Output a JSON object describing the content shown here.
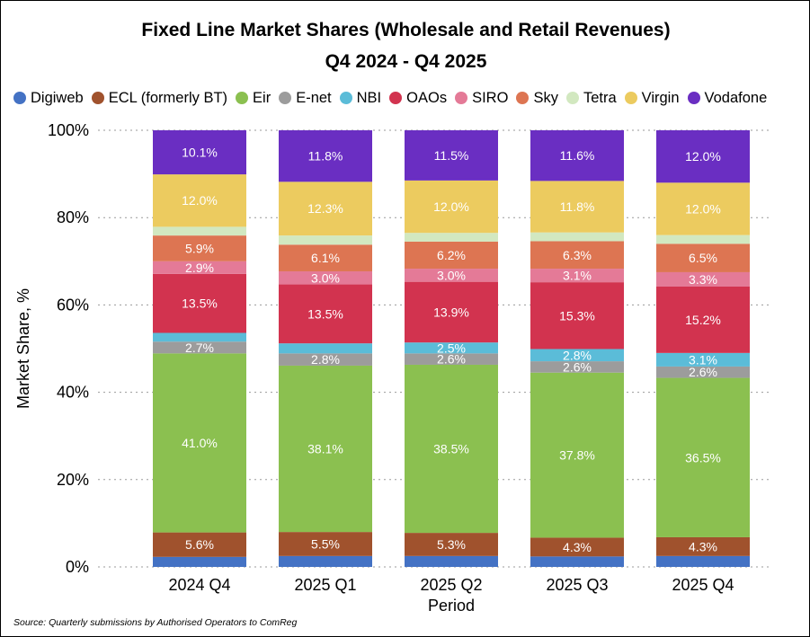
{
  "chart_data": {
    "type": "bar",
    "stacked": true,
    "title": "Fixed Line Market Shares (Wholesale and Retail Revenues)",
    "subtitle": "Q4 2024 - Q4 2025",
    "xlabel": "Period",
    "ylabel": "Market Share, %",
    "ylim": [
      0,
      100
    ],
    "yticks": [
      "0%",
      "20%",
      "40%",
      "60%",
      "80%",
      "100%"
    ],
    "grid": "horizontal dotted",
    "legend_position": "top",
    "categories": [
      "2024 Q4",
      "2025 Q1",
      "2025 Q2",
      "2025 Q3",
      "2025 Q4"
    ],
    "series": [
      {
        "name": "Digiweb",
        "color": "#4472C4",
        "values": [
          2.3,
          2.5,
          2.5,
          2.4,
          2.5
        ],
        "labels": [
          "",
          "",
          "",
          "",
          ""
        ]
      },
      {
        "name": "ECL (formerly BT)",
        "color": "#A0522D",
        "values": [
          5.6,
          5.5,
          5.3,
          4.3,
          4.3
        ],
        "labels": [
          "5.6%",
          "5.5%",
          "5.3%",
          "4.3%",
          "4.3%"
        ]
      },
      {
        "name": "Eir",
        "color": "#8BC050",
        "values": [
          41.0,
          38.1,
          38.5,
          37.8,
          36.5
        ],
        "labels": [
          "41.0%",
          "38.1%",
          "38.5%",
          "37.8%",
          "36.5%"
        ]
      },
      {
        "name": "E-net",
        "color": "#9C9C9C",
        "values": [
          2.7,
          2.8,
          2.6,
          2.6,
          2.6
        ],
        "labels": [
          "2.7%",
          "2.8%",
          "2.6%",
          "2.6%",
          "2.6%"
        ]
      },
      {
        "name": "NBI",
        "color": "#5BBCD8",
        "values": [
          2.0,
          2.3,
          2.5,
          2.8,
          3.1
        ],
        "labels": [
          "",
          "",
          "2.5%",
          "2.8%",
          "3.1%"
        ]
      },
      {
        "name": "OAOs",
        "color": "#D2334F",
        "values": [
          13.5,
          13.5,
          13.9,
          15.3,
          15.2
        ],
        "labels": [
          "13.5%",
          "13.5%",
          "13.9%",
          "15.3%",
          "15.2%"
        ]
      },
      {
        "name": "SIRO",
        "color": "#E47A97",
        "values": [
          2.9,
          3.0,
          3.0,
          3.1,
          3.3
        ],
        "labels": [
          "2.9%",
          "3.0%",
          "3.0%",
          "3.1%",
          "3.3%"
        ]
      },
      {
        "name": "Sky",
        "color": "#DD7552",
        "values": [
          5.9,
          6.1,
          6.2,
          6.3,
          6.5
        ],
        "labels": [
          "5.9%",
          "6.1%",
          "6.2%",
          "6.3%",
          "6.5%"
        ]
      },
      {
        "name": "Tetra",
        "color": "#D2E8C0",
        "values": [
          2.0,
          2.1,
          2.0,
          2.0,
          2.0
        ],
        "labels": [
          "",
          "",
          "",
          "",
          ""
        ]
      },
      {
        "name": "Virgin",
        "color": "#ECCB5F",
        "values": [
          12.0,
          12.3,
          12.0,
          11.8,
          12.0
        ],
        "labels": [
          "12.0%",
          "12.3%",
          "12.0%",
          "11.8%",
          "12.0%"
        ]
      },
      {
        "name": "Vodafone",
        "color": "#6A2EC2",
        "values": [
          10.1,
          11.8,
          11.5,
          11.6,
          12.0
        ],
        "labels": [
          "10.1%",
          "11.8%",
          "11.5%",
          "11.6%",
          "12.0%"
        ]
      }
    ]
  },
  "source_note": "Source: Quarterly submissions by Authorised Operators to ComReg"
}
